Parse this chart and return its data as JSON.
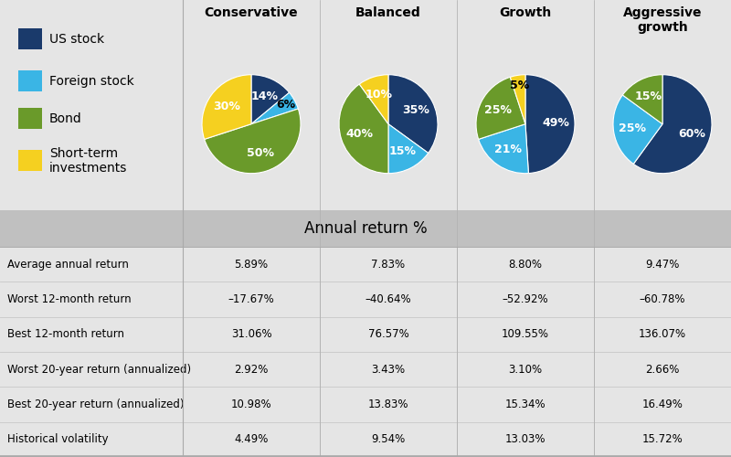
{
  "col_headers": [
    "Conservative",
    "Balanced",
    "Growth",
    "Aggressive\ngrowth"
  ],
  "legend_items": [
    "US stock",
    "Foreign stock",
    "Bond",
    "Short-term\ninvestments"
  ],
  "colors": {
    "us_stock": "#1a3a6b",
    "foreign_stock": "#3ab5e5",
    "bond": "#6a9a2a",
    "short_term": "#f5d020"
  },
  "pie_data": {
    "Conservative": [
      14,
      6,
      50,
      30
    ],
    "Balanced": [
      35,
      15,
      40,
      10
    ],
    "Growth": [
      49,
      21,
      25,
      5
    ],
    "Aggressive growth": [
      60,
      25,
      15,
      0
    ]
  },
  "pie_labels": {
    "Conservative": [
      "14%",
      "6%",
      "50%",
      "30%"
    ],
    "Balanced": [
      "35%",
      "15%",
      "40%",
      "10%"
    ],
    "Growth": [
      "49%",
      "21%",
      "25%",
      "5%"
    ],
    "Aggressive growth": [
      "60%",
      "25%",
      "15%",
      ""
    ]
  },
  "table_header": "Annual return %",
  "row_labels": [
    "Average annual return",
    "Worst 12-month return",
    "Best 12-month return",
    "Worst 20-year return (annualized)",
    "Best 20-year return (annualized)",
    "Historical volatility"
  ],
  "table_data": [
    [
      "5.89%",
      "7.83%",
      "8.80%",
      "9.47%"
    ],
    [
      "–17.67%",
      "–40.64%",
      "–52.92%",
      "–60.78%"
    ],
    [
      "31.06%",
      "76.57%",
      "109.55%",
      "136.07%"
    ],
    [
      "2.92%",
      "3.43%",
      "3.10%",
      "2.66%"
    ],
    [
      "10.98%",
      "13.83%",
      "15.34%",
      "16.49%"
    ],
    [
      "4.49%",
      "9.54%",
      "13.03%",
      "15.72%"
    ]
  ],
  "fig_bg": "#e5e5e5",
  "table_bg": "#ffffff",
  "table_header_bg": "#c0c0c0",
  "row_alt_bg": "#f0f0f0",
  "grid_color": "#cccccc",
  "separator_color": "#aaaaaa"
}
